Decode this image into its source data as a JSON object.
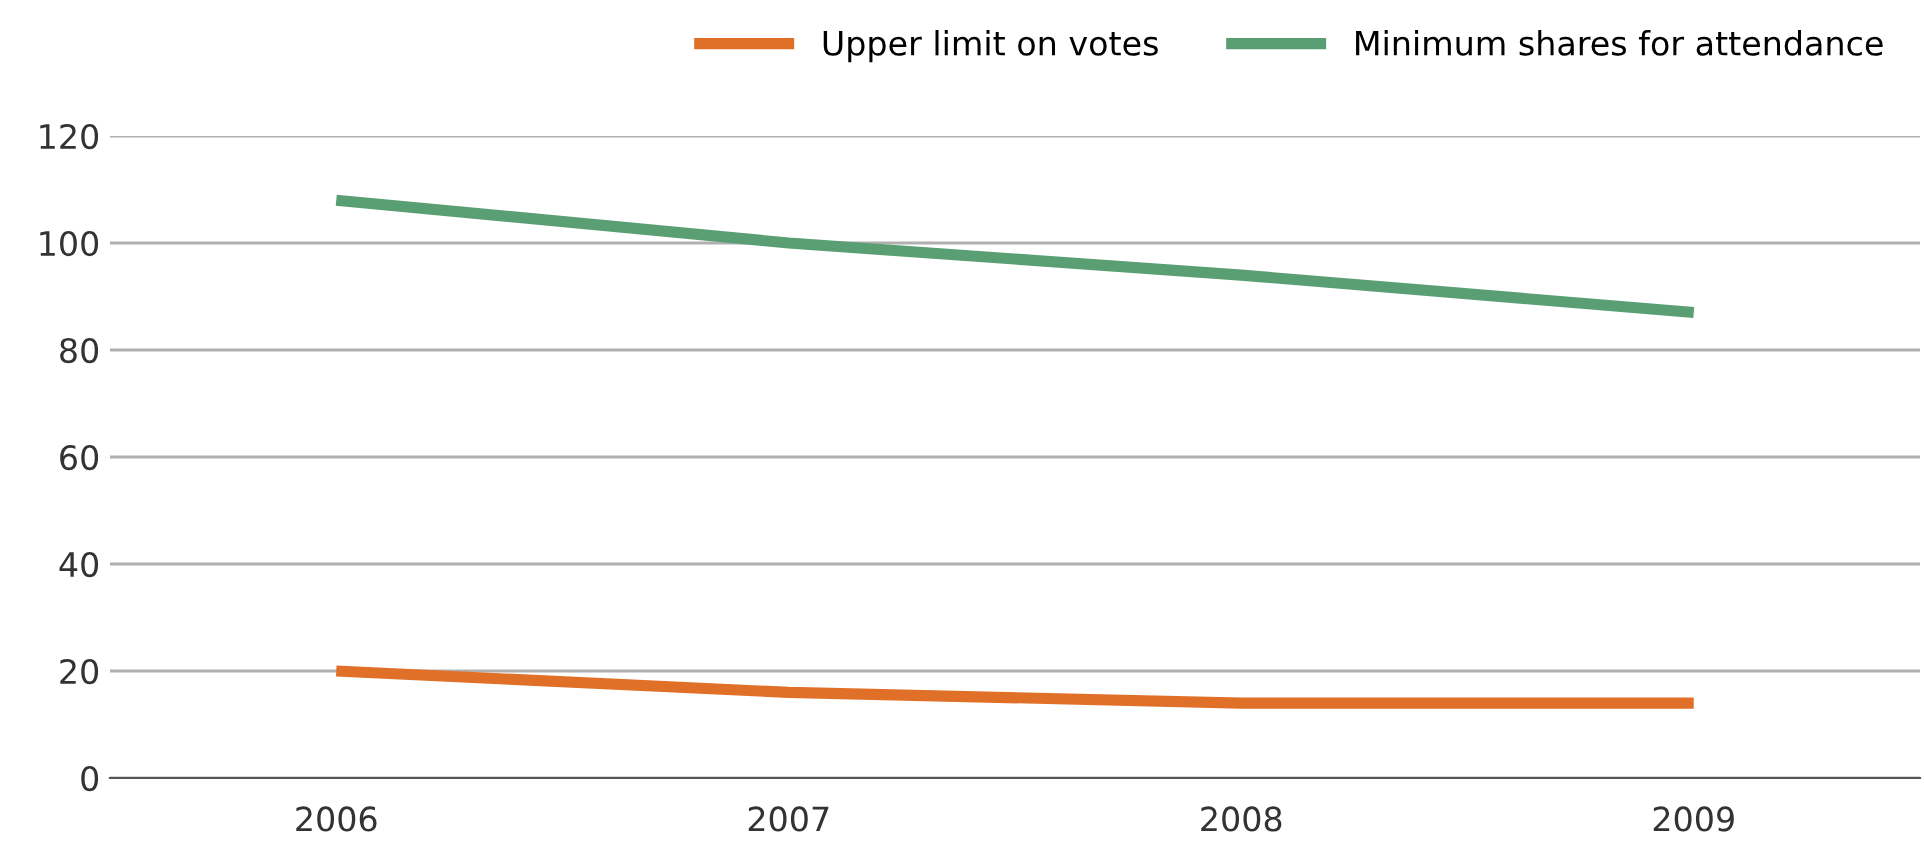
{
  "chart_data": {
    "type": "line",
    "categories": [
      "2006",
      "2007",
      "2008",
      "2009"
    ],
    "series": [
      {
        "name": "Upper limit on votes",
        "color": "#e07028",
        "values": [
          20,
          16,
          14,
          14
        ]
      },
      {
        "name": "Minimum shares for attendance",
        "color": "#5a9e74",
        "values": [
          108,
          100,
          94,
          87
        ]
      }
    ],
    "ylim": [
      0,
      120
    ],
    "yticks": [
      0,
      20,
      40,
      60,
      80,
      100,
      120
    ],
    "grid": "y",
    "legend": "top right",
    "marker": "none",
    "line_style": "solid"
  }
}
